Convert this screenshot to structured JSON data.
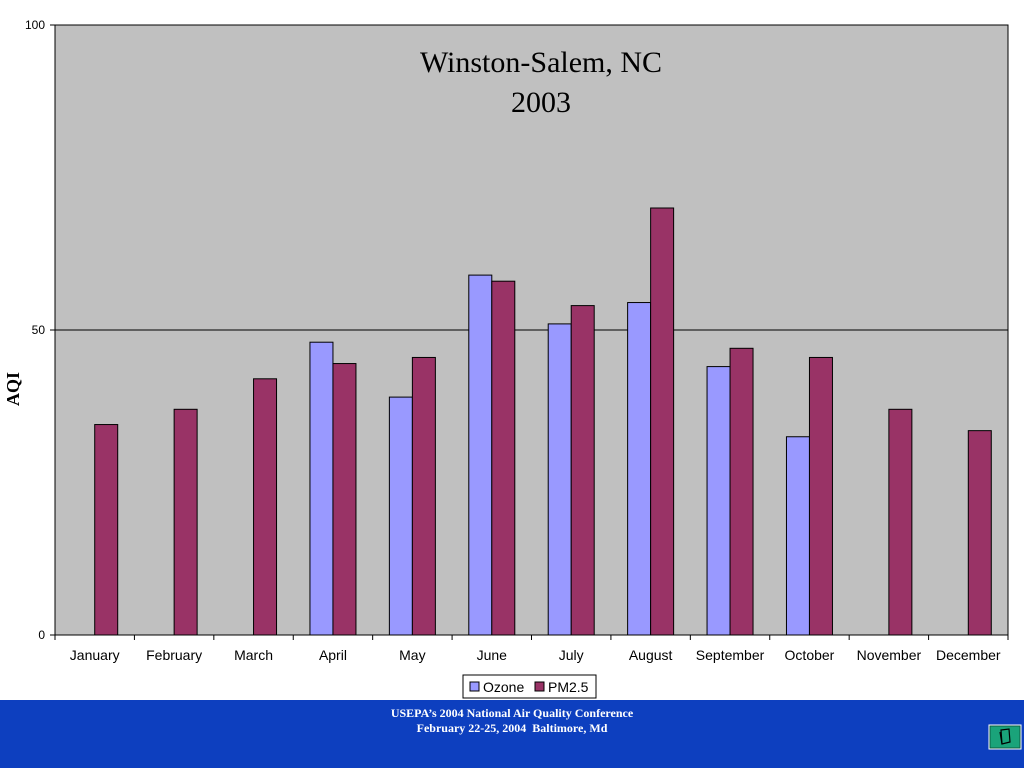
{
  "chart_data": {
    "type": "bar",
    "title": [
      "Winston-Salem, NC",
      "2003"
    ],
    "ylabel": "AQI",
    "xlabel": "",
    "ylim": [
      0,
      100
    ],
    "yticks": [
      "0",
      "50",
      "100"
    ],
    "gridlines": [
      50
    ],
    "categories": [
      "January",
      "February",
      "March",
      "April",
      "May",
      "June",
      "July",
      "August",
      "September",
      "October",
      "November",
      "December"
    ],
    "series": [
      {
        "name": "Ozone",
        "color": "#9999ff",
        "values": [
          null,
          null,
          null,
          48,
          39,
          59,
          51,
          54.5,
          44,
          32.5,
          null,
          null
        ]
      },
      {
        "name": "PM2.5",
        "color": "#993366",
        "values": [
          34.5,
          37,
          42,
          44.5,
          45.5,
          58,
          54,
          70,
          47,
          45.5,
          37,
          33.5
        ]
      }
    ],
    "legend_position": "bottom",
    "plot_background": "#c0c0c0"
  },
  "footer": {
    "line1": "USEPA’s 2004 National Air Quality Conference",
    "line2": "February 22-25, 2004  Baltimore, Md",
    "background": "#0d3fbf",
    "icon": "document-icon"
  }
}
